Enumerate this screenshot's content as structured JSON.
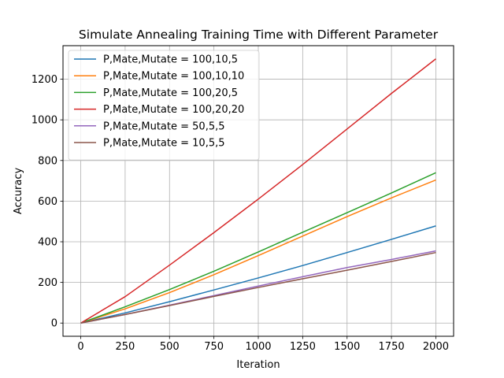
{
  "chart_data": {
    "type": "line",
    "title": "Simulate Annealing Training Time with Different Parameter",
    "xlabel": "Iteration",
    "ylabel": "Accuracy",
    "xlim": [
      -100,
      2100
    ],
    "ylim": [
      -65,
      1365
    ],
    "xticks": [
      0,
      250,
      500,
      750,
      1000,
      1250,
      1500,
      1750,
      2000
    ],
    "yticks": [
      0,
      200,
      400,
      600,
      800,
      1000,
      1200
    ],
    "grid": true,
    "legend": "top-left",
    "x": [
      0,
      250,
      500,
      750,
      1000,
      1250,
      1500,
      1750,
      2000
    ],
    "series": [
      {
        "name": "P,Mate,Mutate = 100,10,5",
        "color": "#1f77b4",
        "values": [
          0,
          50,
          105,
          163,
          222,
          283,
          347,
          412,
          478
        ]
      },
      {
        "name": "P,Mate,Mutate = 100,10,10",
        "color": "#ff7f0e",
        "values": [
          0,
          70,
          150,
          238,
          332,
          428,
          524,
          616,
          704
        ]
      },
      {
        "name": "P,Mate,Mutate = 100,20,5",
        "color": "#2ca02c",
        "values": [
          0,
          80,
          165,
          255,
          350,
          447,
          543,
          640,
          740
        ]
      },
      {
        "name": "P,Mate,Mutate = 100,20,20",
        "color": "#d62728",
        "values": [
          0,
          130,
          285,
          445,
          610,
          780,
          955,
          1130,
          1300
        ]
      },
      {
        "name": "P,Mate,Mutate = 50,5,5",
        "color": "#9467bd",
        "values": [
          0,
          42,
          88,
          135,
          182,
          228,
          273,
          313,
          355
        ]
      },
      {
        "name": "P,Mate,Mutate = 10,5,5",
        "color": "#8c564b",
        "values": [
          0,
          42,
          86,
          131,
          175,
          218,
          260,
          303,
          347
        ]
      }
    ]
  }
}
